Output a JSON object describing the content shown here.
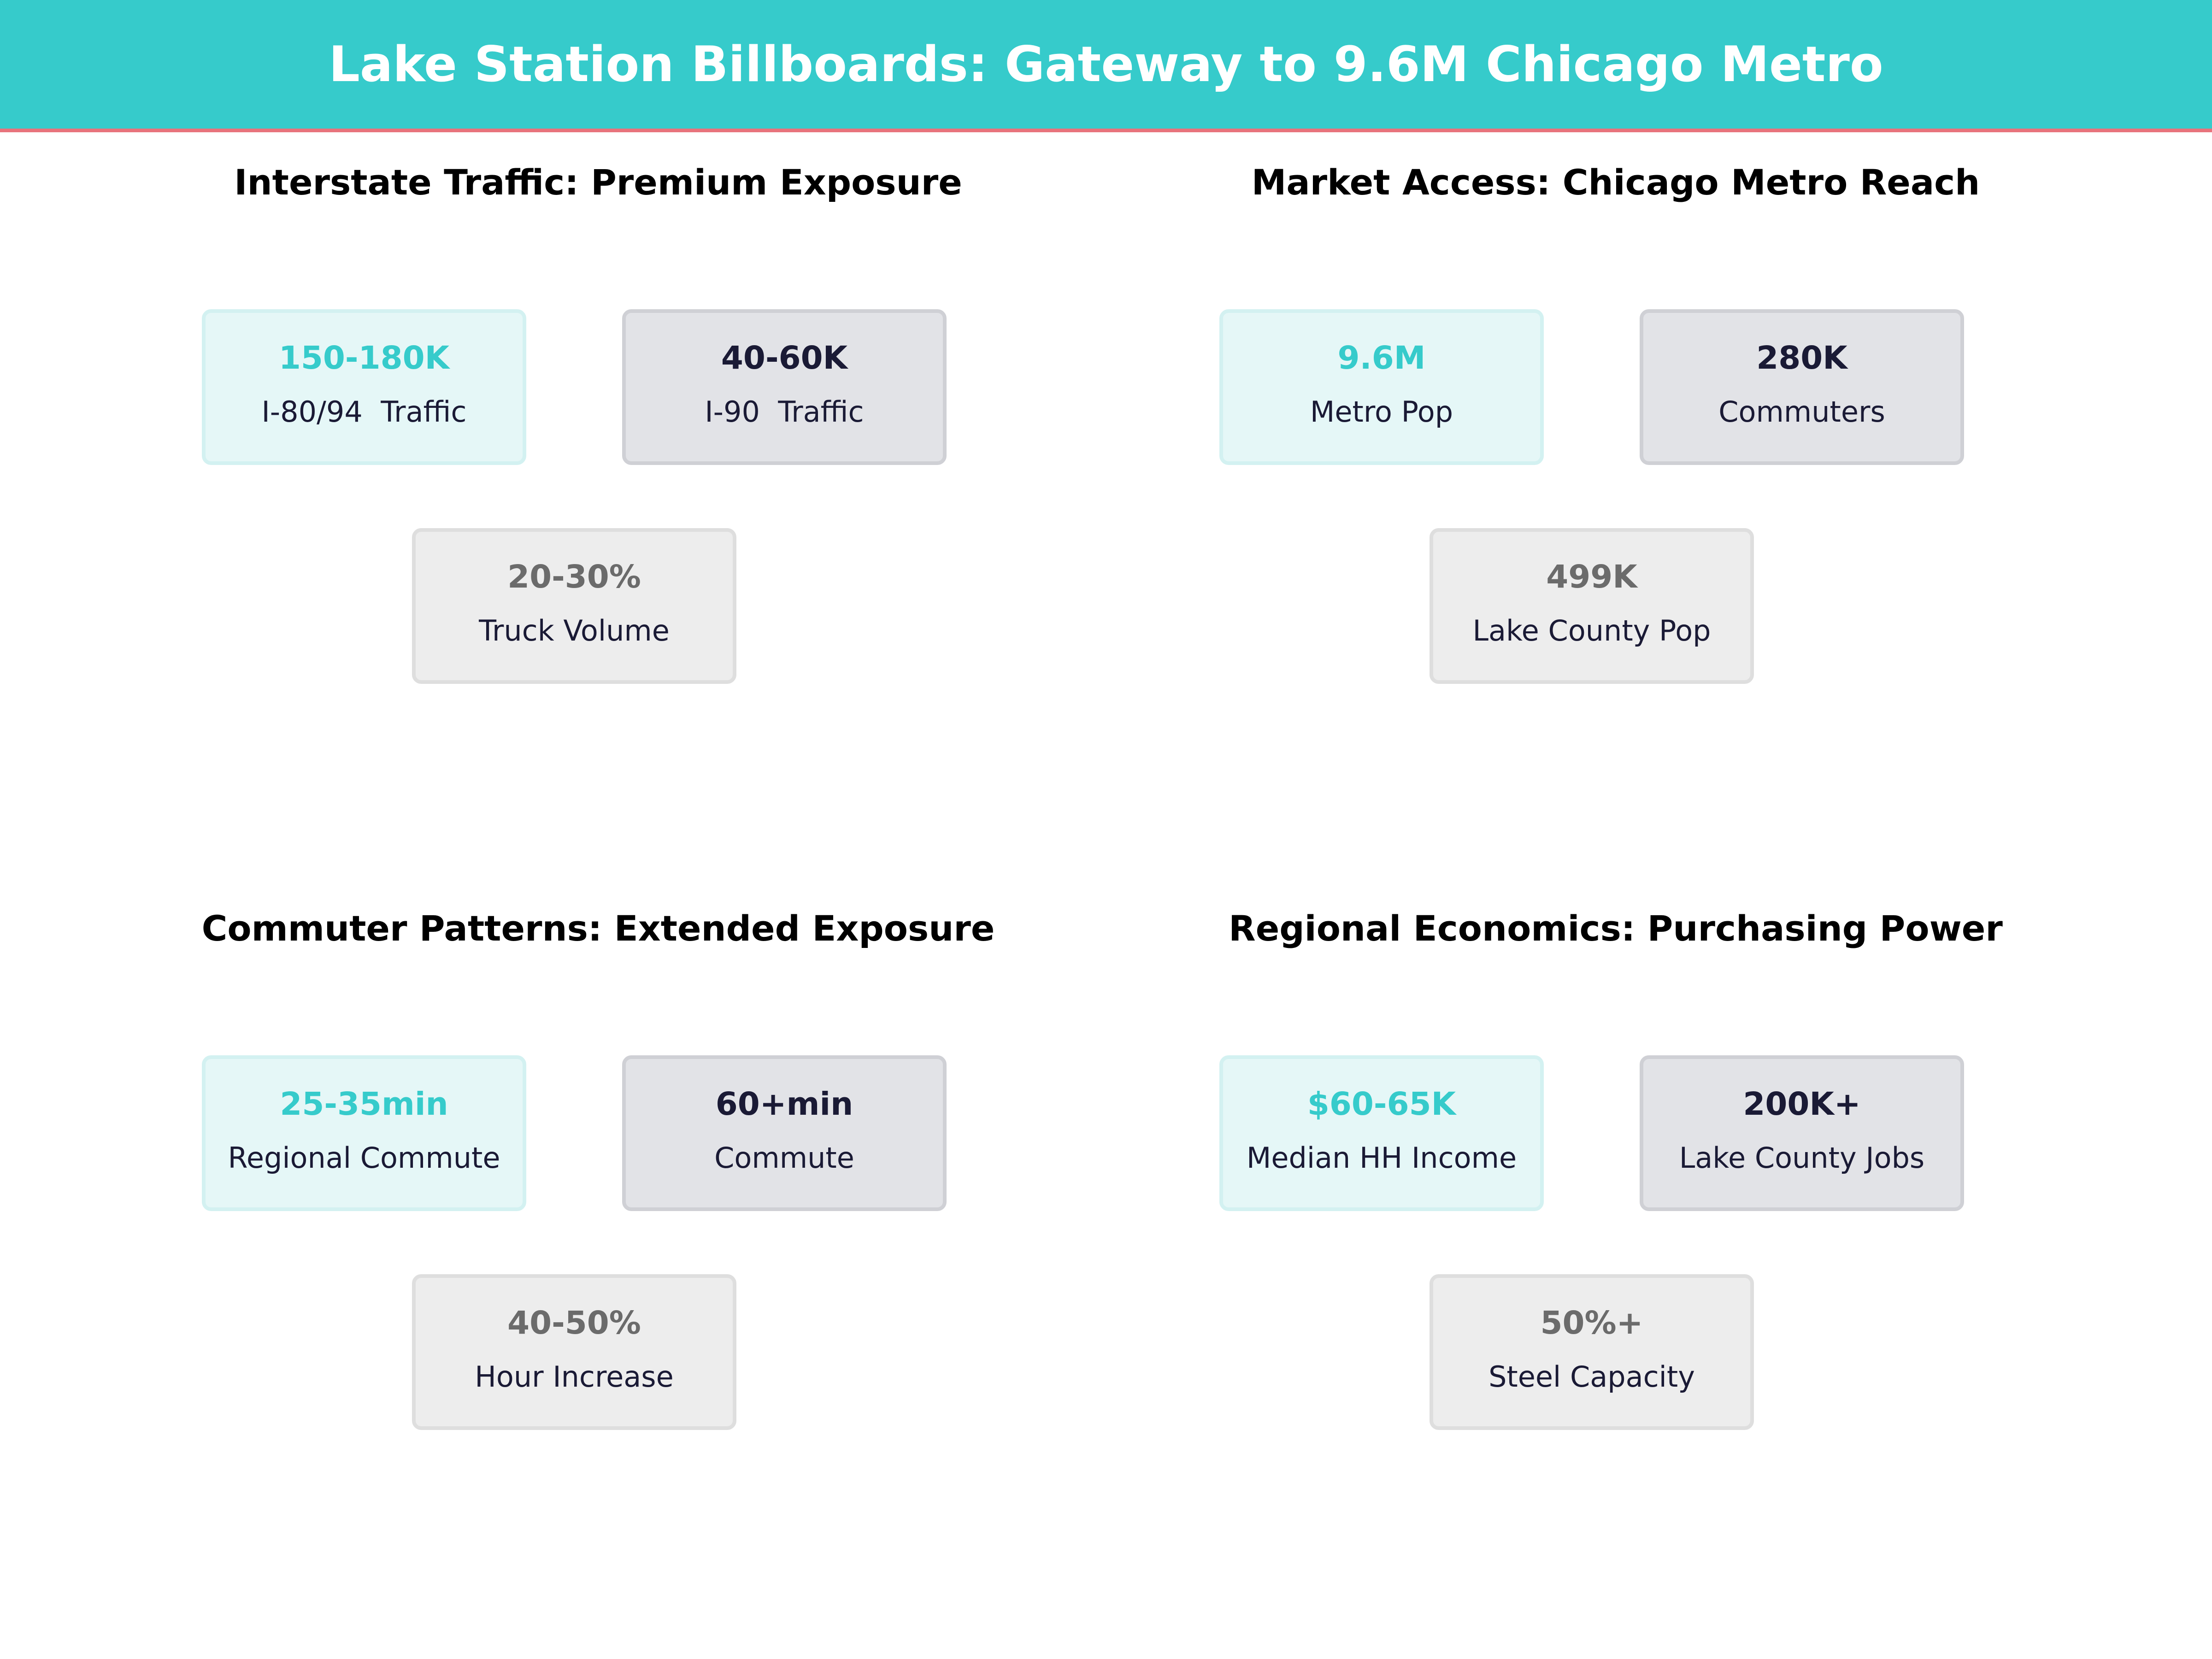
{
  "header": {
    "title": "Lake Station Billboards: Gateway to 9.6M Chicago Metro",
    "colors": {
      "background": "#36cbcb",
      "accent_line": "#e8737c"
    }
  },
  "colors": {
    "primary_value": "#36cbcb",
    "secondary_value": "#1a1a35",
    "tertiary_value": "#6b6b6b"
  },
  "panels": [
    {
      "title": "Interstate Traffic: Premium Exposure",
      "cards": [
        {
          "value": "150-180K",
          "label": "I-80/94  Traffic"
        },
        {
          "value": "40-60K",
          "label": "I-90  Traffic"
        },
        {
          "value": "20-30%",
          "label": "Truck Volume"
        }
      ]
    },
    {
      "title": "Market Access: Chicago Metro Reach",
      "cards": [
        {
          "value": "9.6M",
          "label": "Metro Pop"
        },
        {
          "value": "280K",
          "label": "Commuters"
        },
        {
          "value": "499K",
          "label": "Lake County Pop"
        }
      ]
    },
    {
      "title": "Commuter Patterns: Extended Exposure",
      "cards": [
        {
          "value": "25-35min",
          "label": "Regional Commute"
        },
        {
          "value": "60+min",
          "label": "Commute"
        },
        {
          "value": "40-50%",
          "label": "Hour Increase"
        }
      ]
    },
    {
      "title": "Regional Economics: Purchasing Power",
      "cards": [
        {
          "value": "$60-65K",
          "label": "Median HH Income"
        },
        {
          "value": "200K+",
          "label": "Lake County Jobs"
        },
        {
          "value": "50%+",
          "label": "Steel Capacity"
        }
      ]
    }
  ]
}
